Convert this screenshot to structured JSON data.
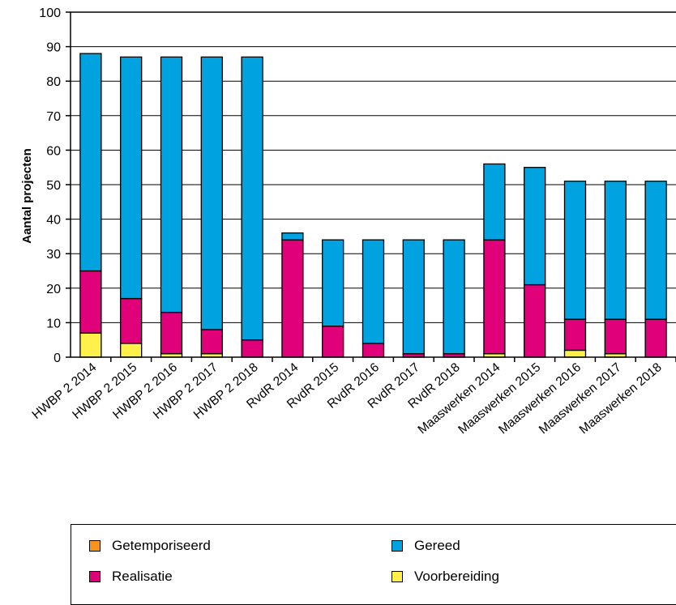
{
  "chart_data": {
    "type": "bar",
    "stacked": true,
    "categories": [
      "HWBP 2 2014",
      "HWBP 2 2015",
      "HWBP 2 2016",
      "HWBP 2 2017",
      "HWBP 2 2018",
      "RvdR 2014",
      "RvdR 2015",
      "RvdR 2016",
      "RvdR 2017",
      "RvdR 2018",
      "Maaswerken 2014",
      "Maaswerken 2015",
      "Maaswerken 2016",
      "Maaswerken 2017",
      "Maaswerken 2018"
    ],
    "series": [
      {
        "name": "Voorbereiding",
        "color": "#FFF04A",
        "values": [
          7,
          4,
          1,
          1,
          0,
          0,
          0,
          0,
          0,
          0,
          1,
          0,
          2,
          1,
          0
        ]
      },
      {
        "name": "Realisatie",
        "color": "#E0007A",
        "values": [
          18,
          13,
          12,
          7,
          5,
          34,
          9,
          4,
          1,
          1,
          33,
          21,
          9,
          10,
          11
        ]
      },
      {
        "name": "Getemporiseerd",
        "color": "#F7941D",
        "values": [
          0,
          0,
          0,
          0,
          0,
          0,
          0,
          0,
          0,
          0,
          0,
          0,
          0,
          0,
          0
        ]
      },
      {
        "name": "Gereed",
        "color": "#00A3E0",
        "values": [
          63,
          70,
          74,
          79,
          82,
          2,
          25,
          30,
          33,
          33,
          22,
          34,
          40,
          40,
          40
        ]
      }
    ],
    "ylabel": "Aantal projecten",
    "xlabel": "",
    "ylim": [
      0,
      100
    ],
    "yticks": [
      0,
      10,
      20,
      30,
      40,
      50,
      60,
      70,
      80,
      90,
      100
    ],
    "grid": true,
    "legend_position": "bottom"
  },
  "legend": {
    "items": [
      {
        "label": "Getemporiseerd",
        "color": "#F7941D"
      },
      {
        "label": "Gereed",
        "color": "#00A3E0"
      },
      {
        "label": "Realisatie",
        "color": "#E0007A"
      },
      {
        "label": "Voorbereiding",
        "color": "#FFF04A"
      }
    ]
  }
}
